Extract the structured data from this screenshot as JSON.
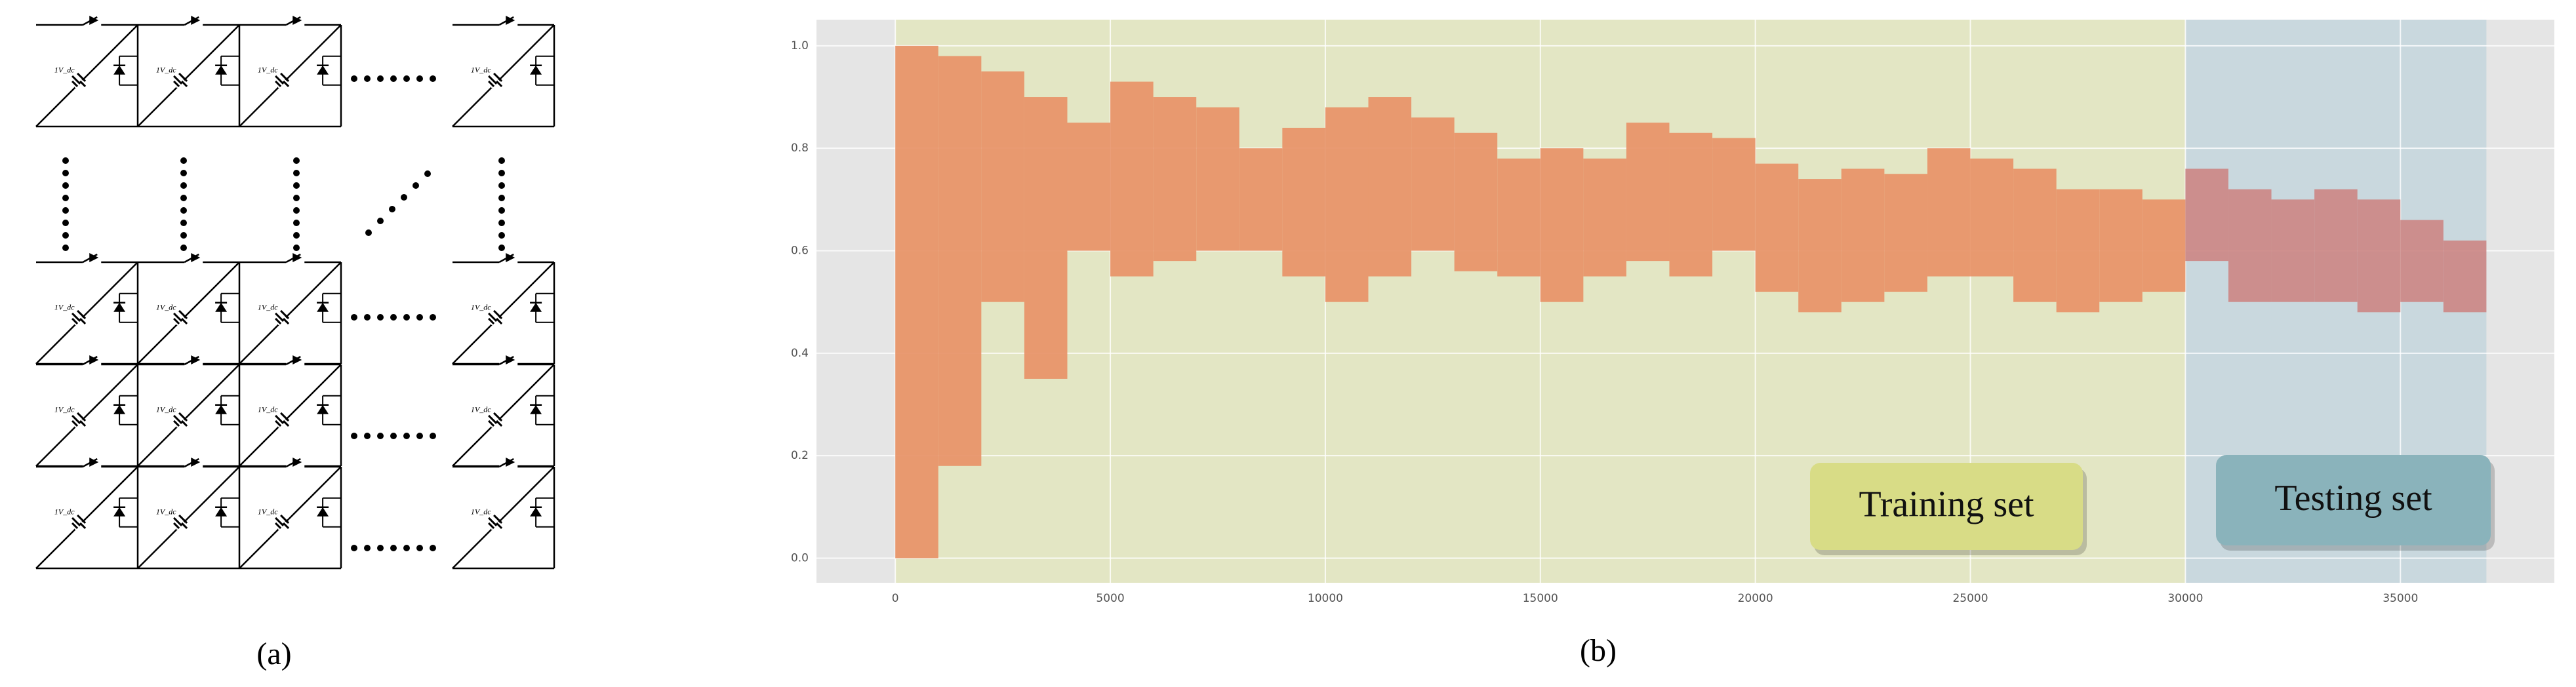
{
  "diagram": {
    "cell_label": "1V_dc",
    "caption": "(a)"
  },
  "chart_data": {
    "type": "range",
    "caption": "(b)",
    "xlim": [
      -1833,
      38580
    ],
    "ylim": [
      -0.048,
      1.051
    ],
    "xticks": [
      0,
      5000,
      10000,
      15000,
      20000,
      25000,
      30000,
      35000
    ],
    "yticks": [
      {
        "value": 0,
        "label": "0.0"
      },
      0.2,
      0.4,
      0.6,
      0.8,
      {
        "value": 1,
        "label": "1.0"
      }
    ],
    "grid": true,
    "background": "#e5e5e5",
    "spans": [
      {
        "x": [
          0,
          30000
        ],
        "color": "#e3e6c4"
      },
      {
        "x": [
          30000,
          37000
        ],
        "color": "#c9d8de"
      }
    ],
    "annotations": [
      {
        "text": "Training set",
        "color": "#d8dc86"
      },
      {
        "text": "Testing set",
        "color": "#8ab3bb"
      }
    ],
    "series": [
      {
        "color": "#e8956a",
        "bins": [
          0,
          1000,
          2000,
          3000,
          4000,
          5000,
          6000,
          7000,
          8000,
          9000,
          10000,
          11000,
          12000,
          13000,
          14000,
          15000,
          16000,
          17000,
          18000,
          19000,
          20000,
          21000,
          22000,
          23000,
          24000,
          25000,
          26000,
          27000,
          28000,
          29000,
          30000
        ],
        "high": [
          1.0,
          0.98,
          0.95,
          0.9,
          0.85,
          0.93,
          0.9,
          0.88,
          0.8,
          0.84,
          0.88,
          0.9,
          0.86,
          0.83,
          0.78,
          0.8,
          0.78,
          0.85,
          0.83,
          0.82,
          0.77,
          0.74,
          0.76,
          0.75,
          0.8,
          0.78,
          0.76,
          0.72,
          0.72,
          0.7
        ],
        "low": [
          0.0,
          0.18,
          0.5,
          0.35,
          0.6,
          0.55,
          0.58,
          0.6,
          0.6,
          0.55,
          0.5,
          0.55,
          0.6,
          0.56,
          0.55,
          0.5,
          0.55,
          0.58,
          0.55,
          0.6,
          0.52,
          0.48,
          0.5,
          0.52,
          0.55,
          0.55,
          0.5,
          0.48,
          0.5,
          0.52
        ]
      },
      {
        "color": "#cc8a88",
        "bins": [
          30000,
          31000,
          32000,
          33000,
          34000,
          35000,
          36000,
          37000
        ],
        "high": [
          0.76,
          0.72,
          0.7,
          0.72,
          0.7,
          0.66,
          0.62
        ],
        "low": [
          0.58,
          0.5,
          0.5,
          0.5,
          0.48,
          0.5,
          0.48
        ]
      }
    ]
  }
}
